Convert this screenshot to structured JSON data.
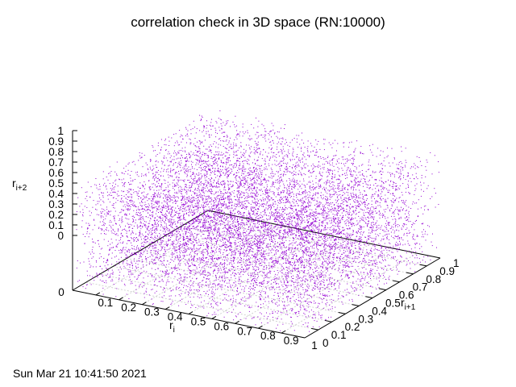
{
  "chart_data": {
    "type": "scatter",
    "title": "correlation check in 3D space (RN:10000)",
    "xlabel": {
      "base": "r",
      "sub": "i"
    },
    "ylabel": {
      "base": "r",
      "sub": "i+1"
    },
    "zlabel": {
      "base": "r",
      "sub": "i+2"
    },
    "n_points": 10000,
    "xlim": [
      0,
      1
    ],
    "ylim": [
      0,
      1
    ],
    "zlim": [
      0,
      1
    ],
    "x_ticks": [
      "0",
      "0.1",
      "0.2",
      "0.3",
      "0.4",
      "0.5",
      "0.6",
      "0.7",
      "0.8",
      "0.9",
      "1"
    ],
    "y_ticks": [
      "0",
      "0.1",
      "0.2",
      "0.3",
      "0.4",
      "0.5",
      "0.6",
      "0.7",
      "0.8",
      "0.9",
      "1"
    ],
    "z_ticks": [
      "0",
      "0.1",
      "0.2",
      "0.3",
      "0.4",
      "0.5",
      "0.6",
      "0.7",
      "0.8",
      "0.9",
      "1"
    ],
    "grid": true,
    "point_color": "#9400d3",
    "timestamp": "Sun Mar 21 10:41:50 2021"
  }
}
